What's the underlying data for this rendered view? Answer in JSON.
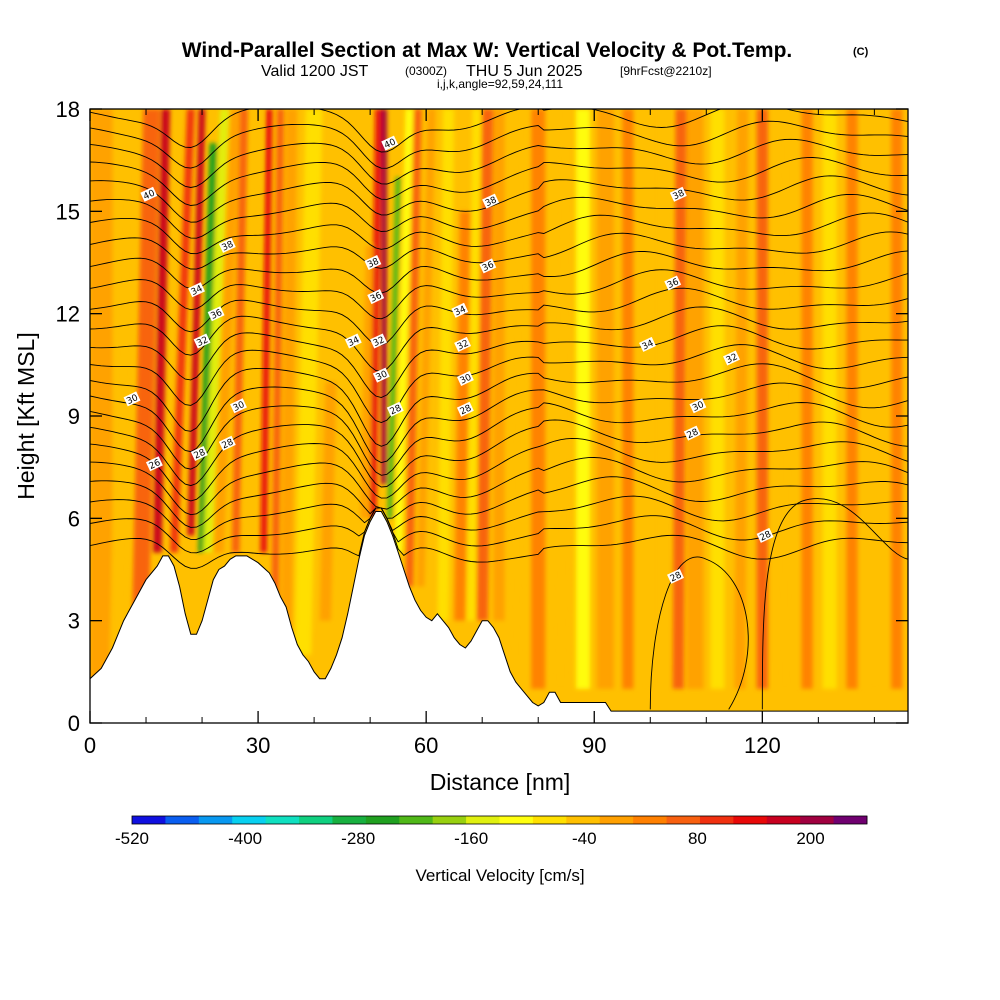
{
  "chart_data": {
    "type": "heatmap",
    "title": "Wind-Parallel Section at Max W: Vertical Velocity & Pot.Temp.",
    "title_tag": "(C)",
    "subtitle_pre": "Valid 1200 JST",
    "subtitle_utc": "(0300Z)",
    "subtitle_mid": "THU 5 Jun 2025",
    "subtitle_fcst": "[9hrFcst@2210z]",
    "subtitle2": "i,j,k,angle=92,59,24,111",
    "xlabel": "Distance [nm]",
    "ylabel": "Height [Kft MSL]",
    "xlim": [
      0,
      146
    ],
    "ylim": [
      0,
      18
    ],
    "x_ticks": [
      "0",
      "30",
      "60",
      "90",
      "120"
    ],
    "x_tick_values": [
      0,
      30,
      60,
      90,
      120
    ],
    "y_ticks": [
      "0",
      "3",
      "6",
      "9",
      "12",
      "15",
      "18"
    ],
    "y_tick_values": [
      0,
      3,
      6,
      9,
      12,
      15,
      18
    ],
    "colorbar": {
      "label": "Vertical Velocity [cm/s]",
      "tick_labels": [
        "-520",
        "-400",
        "-280",
        "-160",
        "-40",
        "80",
        "200"
      ],
      "tick_values": [
        -520,
        -400,
        -280,
        -160,
        -40,
        80,
        200
      ],
      "vmin": -520,
      "vmax": 260,
      "step": 40,
      "colors": [
        "#1010e0",
        "#0a5ef0",
        "#0898f0",
        "#08d0f0",
        "#10e0c0",
        "#10d080",
        "#18b040",
        "#20a020",
        "#50b818",
        "#98d010",
        "#e0f010",
        "#ffff10",
        "#ffe000",
        "#ffc000",
        "#ffa000",
        "#ff8000",
        "#f86010",
        "#f03010",
        "#e80808",
        "#c80020",
        "#a00040",
        "#700070"
      ]
    },
    "terrain_profile": {
      "x": [
        0,
        2,
        4,
        6,
        8,
        10,
        12,
        13,
        14,
        15,
        16,
        17,
        18,
        19,
        20,
        21,
        22,
        23,
        24,
        25,
        26,
        28,
        30,
        32,
        33,
        34,
        35,
        36,
        37,
        38,
        39,
        40,
        41,
        42,
        43,
        44,
        45,
        46,
        47,
        48,
        49,
        50,
        51,
        52,
        53,
        54,
        55,
        56,
        57,
        58,
        59,
        60,
        61,
        62,
        63,
        64,
        65,
        66,
        67,
        68,
        69,
        70,
        71,
        72,
        73,
        74,
        75,
        76,
        77,
        78,
        79,
        80,
        81,
        82,
        83,
        84,
        85,
        86,
        88,
        90,
        92,
        93,
        95,
        100,
        110,
        120,
        130,
        140,
        146
      ],
      "y": [
        1.3,
        1.6,
        2.2,
        3.0,
        3.6,
        4.2,
        4.6,
        4.9,
        4.9,
        4.6,
        4.0,
        3.2,
        2.6,
        2.6,
        3.0,
        3.6,
        4.2,
        4.5,
        4.6,
        4.8,
        4.9,
        4.9,
        4.7,
        4.4,
        4.1,
        3.7,
        3.4,
        2.8,
        2.3,
        2.0,
        1.8,
        1.5,
        1.3,
        1.3,
        1.6,
        2.0,
        2.5,
        3.2,
        4.0,
        4.8,
        5.5,
        5.9,
        6.2,
        6.2,
        5.9,
        5.5,
        5.0,
        4.5,
        4.0,
        3.6,
        3.3,
        3.1,
        3.0,
        3.2,
        3.0,
        2.8,
        2.5,
        2.3,
        2.2,
        2.4,
        2.7,
        3.0,
        3.0,
        2.8,
        2.5,
        2.0,
        1.5,
        1.2,
        1.0,
        0.8,
        0.6,
        0.5,
        0.6,
        0.9,
        0.9,
        0.6,
        0.6,
        0.6,
        0.6,
        0.6,
        0.6,
        0.35,
        0.35,
        0.35,
        0.35,
        0.35,
        0.35,
        0.35,
        0.35
      ]
    },
    "contour_labels": [
      {
        "text": "40",
        "x": 10.5,
        "y": 15.5
      },
      {
        "text": "38",
        "x": 24.5,
        "y": 14.0
      },
      {
        "text": "34",
        "x": 19.0,
        "y": 12.7
      },
      {
        "text": "36",
        "x": 22.5,
        "y": 12.0
      },
      {
        "text": "32",
        "x": 20.0,
        "y": 11.2
      },
      {
        "text": "30",
        "x": 7.5,
        "y": 9.5
      },
      {
        "text": "30",
        "x": 26.5,
        "y": 9.3
      },
      {
        "text": "28",
        "x": 24.5,
        "y": 8.2
      },
      {
        "text": "28",
        "x": 19.5,
        "y": 7.9
      },
      {
        "text": "26",
        "x": 11.5,
        "y": 7.6
      },
      {
        "text": "40",
        "x": 53.5,
        "y": 17.0
      },
      {
        "text": "38",
        "x": 50.5,
        "y": 13.5
      },
      {
        "text": "36",
        "x": 51.0,
        "y": 12.5
      },
      {
        "text": "34",
        "x": 47.0,
        "y": 11.2
      },
      {
        "text": "32",
        "x": 51.5,
        "y": 11.2
      },
      {
        "text": "30",
        "x": 52.0,
        "y": 10.2
      },
      {
        "text": "28",
        "x": 54.5,
        "y": 9.2
      },
      {
        "text": "38",
        "x": 71.5,
        "y": 15.3
      },
      {
        "text": "36",
        "x": 71.0,
        "y": 13.4
      },
      {
        "text": "34",
        "x": 66.0,
        "y": 12.1
      },
      {
        "text": "32",
        "x": 66.5,
        "y": 11.1
      },
      {
        "text": "30",
        "x": 67.0,
        "y": 10.1
      },
      {
        "text": "28",
        "x": 67.0,
        "y": 9.2
      },
      {
        "text": "38",
        "x": 105.0,
        "y": 15.5
      },
      {
        "text": "36",
        "x": 104.0,
        "y": 12.9
      },
      {
        "text": "34",
        "x": 99.5,
        "y": 11.1
      },
      {
        "text": "32",
        "x": 114.5,
        "y": 10.7
      },
      {
        "text": "30",
        "x": 108.5,
        "y": 9.3
      },
      {
        "text": "28",
        "x": 107.5,
        "y": 8.5
      },
      {
        "text": "28",
        "x": 104.5,
        "y": 4.3
      },
      {
        "text": "28",
        "x": 120.5,
        "y": 5.5
      }
    ]
  }
}
